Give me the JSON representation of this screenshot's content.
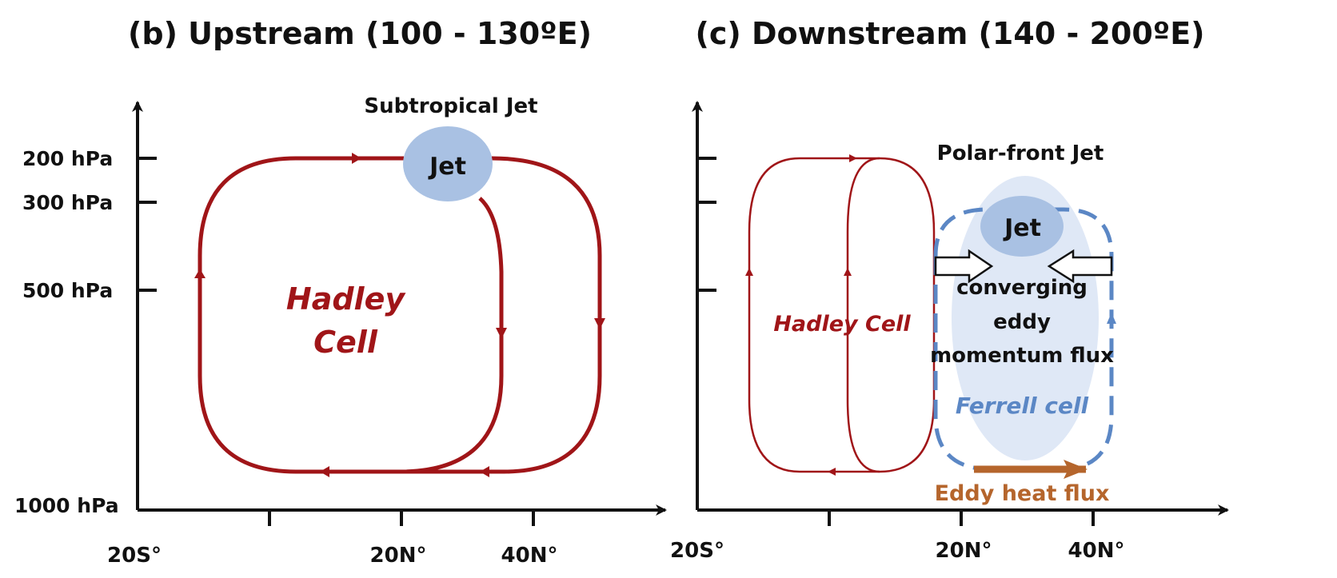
{
  "panel_b": {
    "title": "(b) Upstream (100 - 130ºE)",
    "jet_label": "Subtropical Jet",
    "jet_text": "Jet",
    "cell_line1": "Hadley",
    "cell_line2": "Cell",
    "levels": [
      "200 hPa",
      "300 hPa",
      "500 hPa",
      "1000 hPa"
    ],
    "x_ticks": [
      "20S°",
      "20N°",
      "40N°"
    ]
  },
  "panel_c": {
    "title": "(c) Downstream (140 - 200ºE)",
    "jet_label": "Polar-front Jet",
    "jet_text": "Jet",
    "cell_label": "Hadley Cell",
    "eddy_line1": "converging",
    "eddy_line2": "eddy",
    "eddy_line3": "momentum flux",
    "ferrell_label": "Ferrell cell",
    "heat_label": "Eddy heat flux",
    "x_ticks": [
      "20S°",
      "20N°",
      "40N°"
    ]
  },
  "colors": {
    "hadley": "#a01518",
    "jet": "#a9c1e3",
    "ferrell": "#5b87c5",
    "ferrell_fill": "#dfe8f6",
    "heat": "#b5652c"
  }
}
